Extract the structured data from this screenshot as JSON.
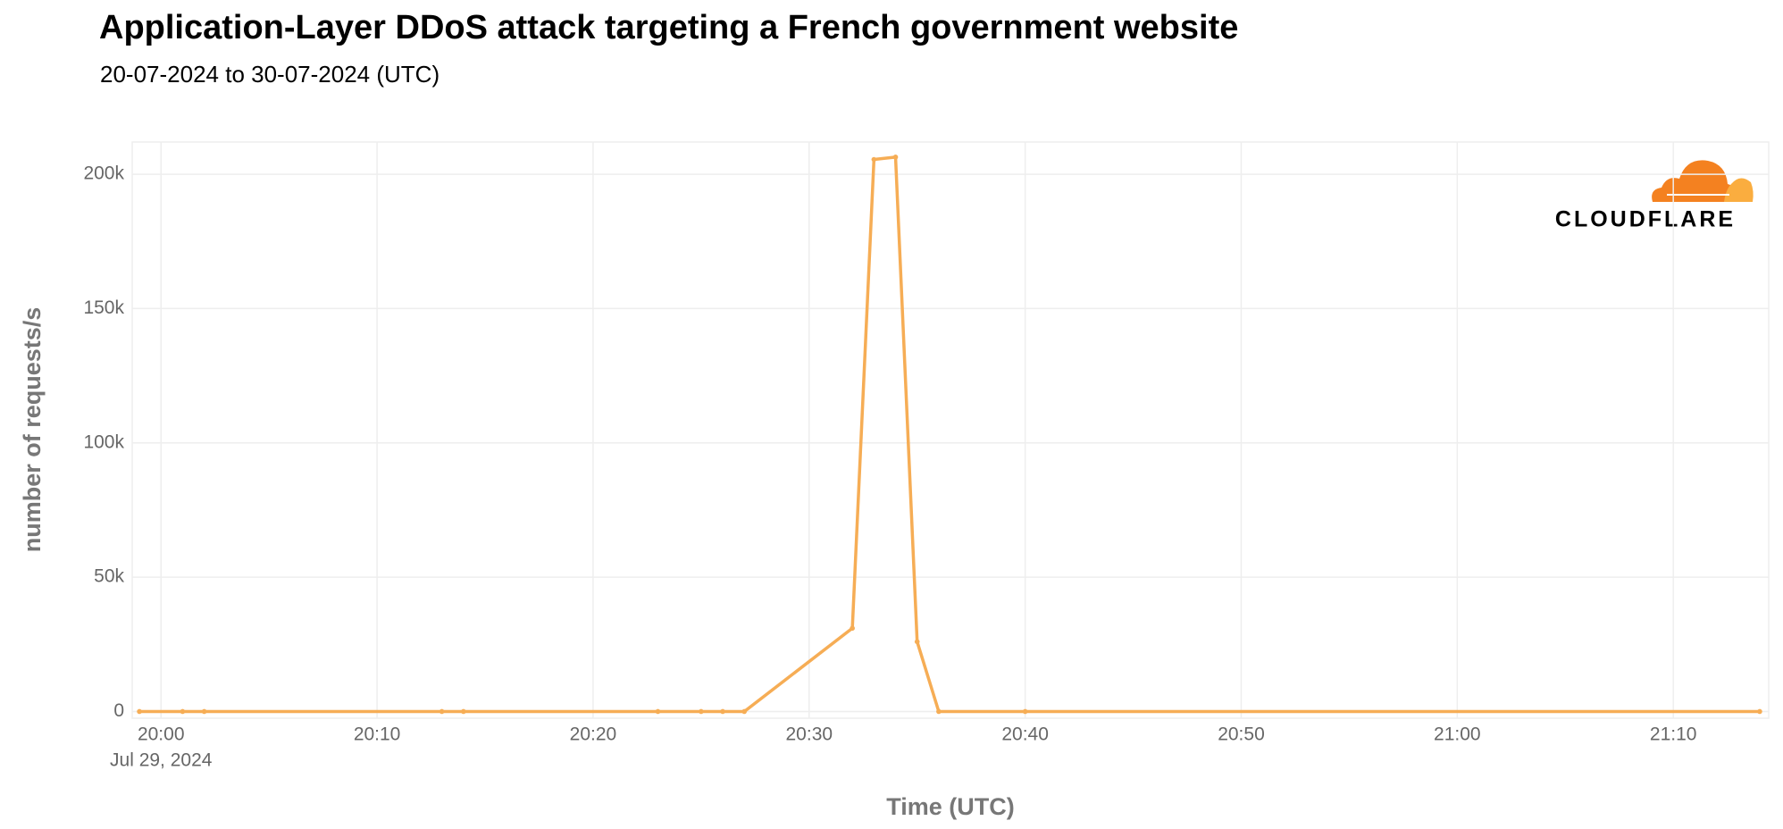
{
  "chart_data": {
    "type": "line",
    "title": "Application-Layer DDoS attack targeting a French government website",
    "subtitle": "20-07-2024 to 30-07-2024 (UTC)",
    "x_label": "Time (UTC)",
    "y_label": "number of requests/s",
    "date_label": "Jul 29, 2024",
    "logo_text": "CLOUDFLARE",
    "x": [
      "19:59",
      "20:01",
      "20:02",
      "20:13",
      "20:14",
      "20:23",
      "20:25",
      "20:26",
      "20:27",
      "20:32",
      "20:33",
      "20:34",
      "20:35",
      "20:36",
      "20:40",
      "21:14"
    ],
    "series": [
      {
        "color": "#f6ad55",
        "values": [
          0,
          0,
          0,
          0,
          0,
          0,
          0,
          0,
          0,
          31000,
          205500,
          206400,
          26000,
          0,
          0,
          0
        ]
      }
    ],
    "xlim": [
      "19:58:40",
      "21:14:25"
    ],
    "xticks": [
      "20:00",
      "20:10",
      "20:20",
      "20:30",
      "20:40",
      "20:50",
      "21:00",
      "21:10"
    ],
    "ylim": [
      -2500,
      212000
    ],
    "yticks": [
      0,
      {
        "value": 50000,
        "label": "50k"
      },
      {
        "value": 100000,
        "label": "100k"
      },
      {
        "value": 150000,
        "label": "150k"
      },
      {
        "value": 200000,
        "label": "200k"
      }
    ],
    "grid": true
  }
}
